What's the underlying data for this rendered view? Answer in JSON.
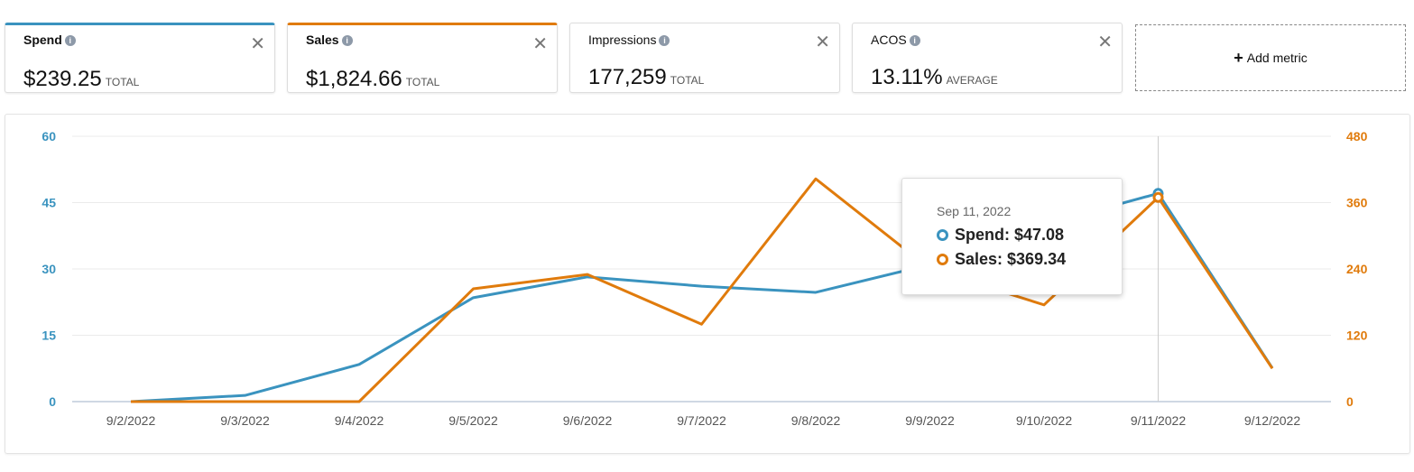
{
  "metrics": [
    {
      "name": "Spend",
      "value": "$239.25",
      "unit": "TOTAL",
      "color": "#3a93bf",
      "selected": true
    },
    {
      "name": "Sales",
      "value": "$1,824.66",
      "unit": "TOTAL",
      "color": "#e07b0c",
      "selected": true
    },
    {
      "name": "Impressions",
      "value": "177,259",
      "unit": "TOTAL",
      "selected": false
    },
    {
      "name": "ACOS",
      "value": "13.11%",
      "unit": "AVERAGE",
      "selected": false
    }
  ],
  "add_metric": "Add metric",
  "tooltip": {
    "date": "Sep 11, 2022",
    "spend": "Spend: $47.08",
    "sales": "Sales: $369.34"
  },
  "chart_data": {
    "type": "line",
    "x": [
      "9/2/2022",
      "9/3/2022",
      "9/4/2022",
      "9/5/2022",
      "9/6/2022",
      "9/7/2022",
      "9/8/2022",
      "9/9/2022",
      "9/10/2022",
      "9/11/2022",
      "9/12/2022"
    ],
    "series": [
      {
        "name": "Spend",
        "axis": "left",
        "color": "#3a93bf",
        "values": [
          0,
          1.4,
          8.4,
          23.5,
          28.2,
          26.1,
          24.7,
          31,
          40,
          47.08,
          7.6
        ]
      },
      {
        "name": "Sales",
        "axis": "right",
        "color": "#e07b0c",
        "values": [
          0,
          0,
          0,
          204,
          230,
          140,
          403,
          240,
          175,
          369.34,
          60
        ]
      }
    ],
    "y_left": {
      "ticks": [
        0,
        15,
        30,
        45,
        60
      ],
      "range": [
        0,
        60
      ]
    },
    "y_right": {
      "ticks": [
        0,
        120,
        240,
        360,
        480
      ],
      "range": [
        0,
        480
      ]
    },
    "highlight_index": 9,
    "grid": true
  }
}
